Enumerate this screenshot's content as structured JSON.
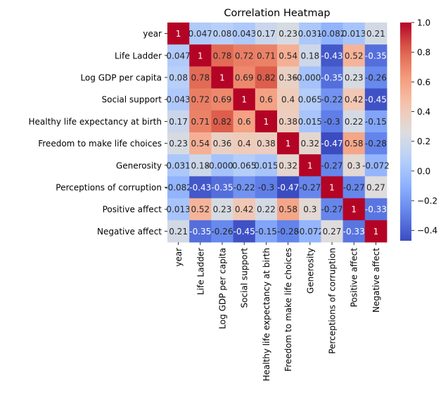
{
  "chart_data": {
    "type": "heatmap",
    "title": "Correlation Heatmap",
    "variables": [
      "year",
      "Life Ladder",
      "Log GDP per capita",
      "Social support",
      "Healthy life expectancy at birth",
      "Freedom to make life choices",
      "Generosity",
      "Perceptions of corruption",
      "Positive affect",
      "Negative affect"
    ],
    "values": [
      [
        1,
        0.047,
        0.08,
        0.043,
        0.17,
        0.23,
        0.031,
        -0.082,
        0.013,
        0.21
      ],
      [
        0.047,
        1,
        0.78,
        0.72,
        0.71,
        0.54,
        0.18,
        -0.43,
        0.52,
        -0.35
      ],
      [
        0.08,
        0.78,
        1,
        0.69,
        0.82,
        0.36,
        -0.0007,
        -0.35,
        0.23,
        -0.26
      ],
      [
        0.043,
        0.72,
        0.69,
        1,
        0.6,
        0.4,
        0.065,
        -0.22,
        0.42,
        -0.45
      ],
      [
        0.17,
        0.71,
        0.82,
        0.6,
        1,
        0.38,
        0.015,
        -0.3,
        0.22,
        -0.15
      ],
      [
        0.23,
        0.54,
        0.36,
        0.4,
        0.38,
        1,
        0.32,
        -0.47,
        0.58,
        -0.28
      ],
      [
        0.031,
        0.18,
        -0.0007,
        0.065,
        0.015,
        0.32,
        1,
        -0.27,
        0.3,
        -0.072
      ],
      [
        -0.082,
        -0.43,
        -0.35,
        -0.22,
        -0.3,
        -0.47,
        -0.27,
        1,
        -0.27,
        0.27
      ],
      [
        0.013,
        0.52,
        0.23,
        0.42,
        0.22,
        0.58,
        0.3,
        -0.27,
        1,
        -0.33
      ],
      [
        0.21,
        -0.35,
        -0.26,
        -0.45,
        -0.15,
        -0.28,
        -0.072,
        0.27,
        -0.33,
        1
      ]
    ],
    "labels": [
      [
        "1",
        "0.047",
        "0.08",
        "0.043",
        "0.17",
        "0.23",
        "0.031",
        "-0.082",
        "0.013",
        "0.21"
      ],
      [
        "0.047",
        "1",
        "0.78",
        "0.72",
        "0.71",
        "0.54",
        "0.18",
        "-0.43",
        "0.52",
        "-0.35"
      ],
      [
        "0.08",
        "0.78",
        "1",
        "0.69",
        "0.82",
        "0.36",
        "-0.0007",
        "-0.35",
        "0.23",
        "-0.26"
      ],
      [
        "0.043",
        "0.72",
        "0.69",
        "1",
        "0.6",
        "0.4",
        "0.065",
        "-0.22",
        "0.42",
        "-0.45"
      ],
      [
        "0.17",
        "0.71",
        "0.82",
        "0.6",
        "1",
        "0.38",
        "0.015",
        "-0.3",
        "0.22",
        "-0.15"
      ],
      [
        "0.23",
        "0.54",
        "0.36",
        "0.4",
        "0.38",
        "1",
        "0.32",
        "-0.47",
        "0.58",
        "-0.28"
      ],
      [
        "0.031",
        "0.18",
        "-0.0007",
        "0.065",
        "0.015",
        "0.32",
        "1",
        "-0.27",
        "0.3",
        "-0.072"
      ],
      [
        "-0.082",
        "-0.43",
        "-0.35",
        "-0.22",
        "-0.3",
        "-0.47",
        "-0.27",
        "1",
        "-0.27",
        "0.27"
      ],
      [
        "0.013",
        "0.52",
        "0.23",
        "0.42",
        "0.22",
        "0.58",
        "0.3",
        "-0.27",
        "1",
        "-0.33"
      ],
      [
        "0.21",
        "-0.35",
        "-0.26",
        "-0.45",
        "-0.15",
        "-0.28",
        "-0.072",
        "0.27",
        "-0.33",
        "1"
      ]
    ],
    "colormap": "coolwarm",
    "colorbar": {
      "vmin": -0.47,
      "vmax": 1,
      "ticks": [
        -0.4,
        -0.2,
        0.0,
        0.2,
        0.4,
        0.6,
        0.8,
        1.0
      ],
      "tick_labels": [
        "−0.4",
        "−0.2",
        "0.0",
        "0.2",
        "0.4",
        "0.6",
        "0.8",
        "1.0"
      ]
    },
    "grid": false,
    "legend": "colorbar-right"
  }
}
